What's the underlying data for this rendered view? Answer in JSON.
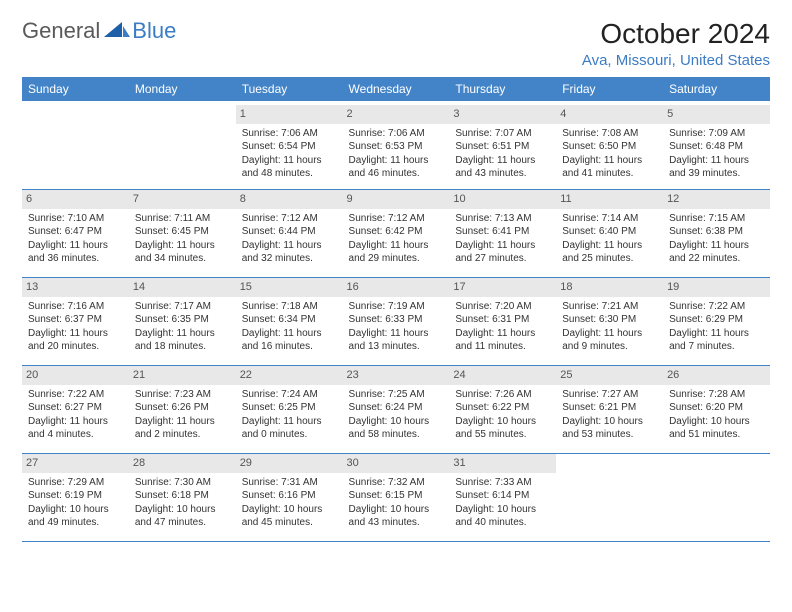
{
  "logo": {
    "text1": "General",
    "text2": "Blue"
  },
  "title": "October 2024",
  "location": "Ava, Missouri, United States",
  "colors": {
    "header_bg": "#4384c8",
    "header_text": "#ffffff",
    "logo_gray": "#5a5a5a",
    "logo_blue": "#3b7cc4",
    "daynum_bg": "#e8e8e8",
    "rule": "#4384c8"
  },
  "day_headers": [
    "Sunday",
    "Monday",
    "Tuesday",
    "Wednesday",
    "Thursday",
    "Friday",
    "Saturday"
  ],
  "weeks": [
    [
      null,
      null,
      {
        "n": "1",
        "sr": "Sunrise: 7:06 AM",
        "ss": "Sunset: 6:54 PM",
        "d1": "Daylight: 11 hours",
        "d2": "and 48 minutes."
      },
      {
        "n": "2",
        "sr": "Sunrise: 7:06 AM",
        "ss": "Sunset: 6:53 PM",
        "d1": "Daylight: 11 hours",
        "d2": "and 46 minutes."
      },
      {
        "n": "3",
        "sr": "Sunrise: 7:07 AM",
        "ss": "Sunset: 6:51 PM",
        "d1": "Daylight: 11 hours",
        "d2": "and 43 minutes."
      },
      {
        "n": "4",
        "sr": "Sunrise: 7:08 AM",
        "ss": "Sunset: 6:50 PM",
        "d1": "Daylight: 11 hours",
        "d2": "and 41 minutes."
      },
      {
        "n": "5",
        "sr": "Sunrise: 7:09 AM",
        "ss": "Sunset: 6:48 PM",
        "d1": "Daylight: 11 hours",
        "d2": "and 39 minutes."
      }
    ],
    [
      {
        "n": "6",
        "sr": "Sunrise: 7:10 AM",
        "ss": "Sunset: 6:47 PM",
        "d1": "Daylight: 11 hours",
        "d2": "and 36 minutes."
      },
      {
        "n": "7",
        "sr": "Sunrise: 7:11 AM",
        "ss": "Sunset: 6:45 PM",
        "d1": "Daylight: 11 hours",
        "d2": "and 34 minutes."
      },
      {
        "n": "8",
        "sr": "Sunrise: 7:12 AM",
        "ss": "Sunset: 6:44 PM",
        "d1": "Daylight: 11 hours",
        "d2": "and 32 minutes."
      },
      {
        "n": "9",
        "sr": "Sunrise: 7:12 AM",
        "ss": "Sunset: 6:42 PM",
        "d1": "Daylight: 11 hours",
        "d2": "and 29 minutes."
      },
      {
        "n": "10",
        "sr": "Sunrise: 7:13 AM",
        "ss": "Sunset: 6:41 PM",
        "d1": "Daylight: 11 hours",
        "d2": "and 27 minutes."
      },
      {
        "n": "11",
        "sr": "Sunrise: 7:14 AM",
        "ss": "Sunset: 6:40 PM",
        "d1": "Daylight: 11 hours",
        "d2": "and 25 minutes."
      },
      {
        "n": "12",
        "sr": "Sunrise: 7:15 AM",
        "ss": "Sunset: 6:38 PM",
        "d1": "Daylight: 11 hours",
        "d2": "and 22 minutes."
      }
    ],
    [
      {
        "n": "13",
        "sr": "Sunrise: 7:16 AM",
        "ss": "Sunset: 6:37 PM",
        "d1": "Daylight: 11 hours",
        "d2": "and 20 minutes."
      },
      {
        "n": "14",
        "sr": "Sunrise: 7:17 AM",
        "ss": "Sunset: 6:35 PM",
        "d1": "Daylight: 11 hours",
        "d2": "and 18 minutes."
      },
      {
        "n": "15",
        "sr": "Sunrise: 7:18 AM",
        "ss": "Sunset: 6:34 PM",
        "d1": "Daylight: 11 hours",
        "d2": "and 16 minutes."
      },
      {
        "n": "16",
        "sr": "Sunrise: 7:19 AM",
        "ss": "Sunset: 6:33 PM",
        "d1": "Daylight: 11 hours",
        "d2": "and 13 minutes."
      },
      {
        "n": "17",
        "sr": "Sunrise: 7:20 AM",
        "ss": "Sunset: 6:31 PM",
        "d1": "Daylight: 11 hours",
        "d2": "and 11 minutes."
      },
      {
        "n": "18",
        "sr": "Sunrise: 7:21 AM",
        "ss": "Sunset: 6:30 PM",
        "d1": "Daylight: 11 hours",
        "d2": "and 9 minutes."
      },
      {
        "n": "19",
        "sr": "Sunrise: 7:22 AM",
        "ss": "Sunset: 6:29 PM",
        "d1": "Daylight: 11 hours",
        "d2": "and 7 minutes."
      }
    ],
    [
      {
        "n": "20",
        "sr": "Sunrise: 7:22 AM",
        "ss": "Sunset: 6:27 PM",
        "d1": "Daylight: 11 hours",
        "d2": "and 4 minutes."
      },
      {
        "n": "21",
        "sr": "Sunrise: 7:23 AM",
        "ss": "Sunset: 6:26 PM",
        "d1": "Daylight: 11 hours",
        "d2": "and 2 minutes."
      },
      {
        "n": "22",
        "sr": "Sunrise: 7:24 AM",
        "ss": "Sunset: 6:25 PM",
        "d1": "Daylight: 11 hours",
        "d2": "and 0 minutes."
      },
      {
        "n": "23",
        "sr": "Sunrise: 7:25 AM",
        "ss": "Sunset: 6:24 PM",
        "d1": "Daylight: 10 hours",
        "d2": "and 58 minutes."
      },
      {
        "n": "24",
        "sr": "Sunrise: 7:26 AM",
        "ss": "Sunset: 6:22 PM",
        "d1": "Daylight: 10 hours",
        "d2": "and 55 minutes."
      },
      {
        "n": "25",
        "sr": "Sunrise: 7:27 AM",
        "ss": "Sunset: 6:21 PM",
        "d1": "Daylight: 10 hours",
        "d2": "and 53 minutes."
      },
      {
        "n": "26",
        "sr": "Sunrise: 7:28 AM",
        "ss": "Sunset: 6:20 PM",
        "d1": "Daylight: 10 hours",
        "d2": "and 51 minutes."
      }
    ],
    [
      {
        "n": "27",
        "sr": "Sunrise: 7:29 AM",
        "ss": "Sunset: 6:19 PM",
        "d1": "Daylight: 10 hours",
        "d2": "and 49 minutes."
      },
      {
        "n": "28",
        "sr": "Sunrise: 7:30 AM",
        "ss": "Sunset: 6:18 PM",
        "d1": "Daylight: 10 hours",
        "d2": "and 47 minutes."
      },
      {
        "n": "29",
        "sr": "Sunrise: 7:31 AM",
        "ss": "Sunset: 6:16 PM",
        "d1": "Daylight: 10 hours",
        "d2": "and 45 minutes."
      },
      {
        "n": "30",
        "sr": "Sunrise: 7:32 AM",
        "ss": "Sunset: 6:15 PM",
        "d1": "Daylight: 10 hours",
        "d2": "and 43 minutes."
      },
      {
        "n": "31",
        "sr": "Sunrise: 7:33 AM",
        "ss": "Sunset: 6:14 PM",
        "d1": "Daylight: 10 hours",
        "d2": "and 40 minutes."
      },
      null,
      null
    ]
  ]
}
